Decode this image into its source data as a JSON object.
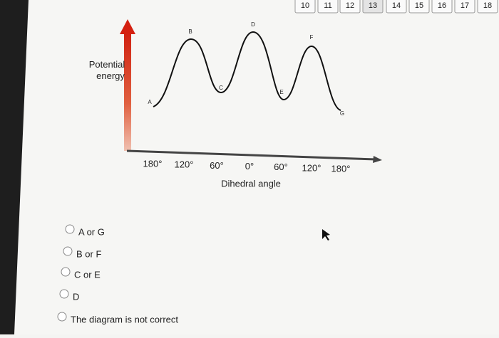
{
  "tabs": [
    "10",
    "11",
    "12",
    "13",
    "14",
    "15",
    "16",
    "17",
    "18"
  ],
  "diagram": {
    "y_label": "Potential energy",
    "x_label": "Dihedral angle",
    "x_ticks": [
      "180°",
      "120°",
      "60°",
      "0°",
      "60°",
      "120°",
      "180°"
    ],
    "points": [
      "A",
      "B",
      "C",
      "D",
      "E",
      "F",
      "G"
    ]
  },
  "options": [
    "A or G",
    "B or F",
    "C or E",
    "D",
    "The diagram is not correct"
  ]
}
